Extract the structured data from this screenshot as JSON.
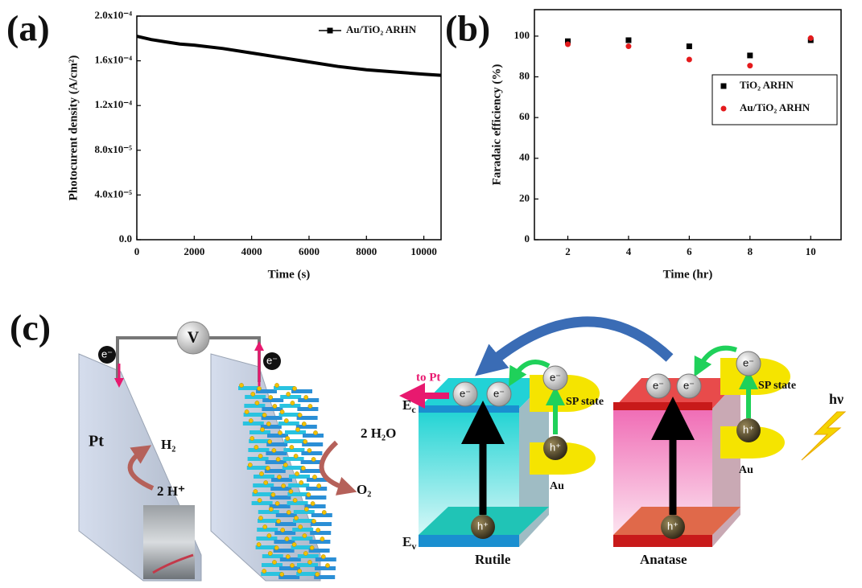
{
  "panels": [
    "(a)",
    "(b)",
    "(c)"
  ],
  "chart_data": [
    {
      "type": "line",
      "xlabel": "Time (s)",
      "ylabel": "Photocurent density (A/cm²)",
      "x": [
        0,
        500,
        1000,
        1500,
        2000,
        3000,
        4000,
        5000,
        6000,
        7000,
        8000,
        9000,
        10000,
        10600
      ],
      "series": [
        {
          "name": "Au/TiO₂ ARHN",
          "color": "#000000",
          "values": [
            0.000182,
            0.000179,
            0.000177,
            0.000175,
            0.000174,
            0.000171,
            0.000167,
            0.000163,
            0.000159,
            0.000155,
            0.000152,
            0.00015,
            0.000148,
            0.000147
          ]
        }
      ],
      "xlim": [
        0,
        10600
      ],
      "xticks": [
        0,
        2000,
        4000,
        6000,
        8000,
        10000
      ],
      "ylim": [
        0,
        0.0002
      ],
      "yticks": [
        {
          "value": 0,
          "label": "0.0"
        },
        {
          "value": 4e-05,
          "label": "4.0x10⁻⁵"
        },
        {
          "value": 8e-05,
          "label": "8.0x10⁻⁵"
        },
        {
          "value": 0.00012,
          "label": "1.2x10⁻⁴"
        },
        {
          "value": 0.00016,
          "label": "1.6x10⁻⁴"
        },
        {
          "value": 0.0002,
          "label": "2.0x10⁻⁴"
        }
      ],
      "legend": "upper right"
    },
    {
      "type": "scatter",
      "xlabel": "Time (hr)",
      "ylabel": "Faradaic efficiency (%)",
      "x": [
        2,
        4,
        6,
        8,
        10
      ],
      "series": [
        {
          "name": "TiO₂ ARHN",
          "color": "#000000",
          "marker": "square",
          "values": [
            97.5,
            98,
            95,
            90.5,
            98
          ]
        },
        {
          "name": "Au/TiO₂ ARHN",
          "color": "#e41a1c",
          "marker": "circle",
          "values": [
            96,
            95,
            88.5,
            85.5,
            99
          ]
        }
      ],
      "xlim": [
        0.9,
        11
      ],
      "xticks": [
        2,
        4,
        6,
        8,
        10
      ],
      "ylim": [
        0,
        113
      ],
      "yticks": [
        0,
        20,
        40,
        60,
        80,
        100
      ],
      "legend": "upper right"
    }
  ],
  "diagram": {
    "voltmeter": "V",
    "electrons": [
      "e⁻",
      "e⁻",
      "e⁻",
      "e⁻",
      "e⁻",
      "e⁻",
      "e⁻",
      "e⁻"
    ],
    "holes": [
      "h⁺",
      "h⁺",
      "h⁺",
      "h⁺"
    ],
    "pt_electrode": "Pt",
    "h2": "H₂",
    "protons": "2 H⁺",
    "water": "2 H₂O",
    "o2": "O₂",
    "to_pt": "to Pt",
    "ec": {
      "main": "E",
      "sub": "c"
    },
    "ev": {
      "main": "E",
      "sub": "v"
    },
    "sp_state": [
      "SP state",
      "SP state"
    ],
    "au": [
      "Au",
      "Au"
    ],
    "rutile": "Rutile",
    "anatase": "Anatase",
    "photon": "hν"
  }
}
